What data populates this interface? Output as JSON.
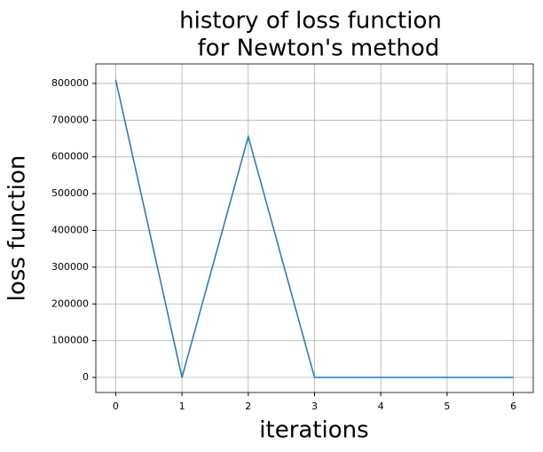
{
  "chart_data": {
    "type": "line",
    "title": [
      "history of loss function",
      "for Newton's method"
    ],
    "xlabel": "iterations",
    "ylabel": "loss function",
    "x": [
      0,
      1,
      2,
      3,
      4,
      5,
      6
    ],
    "series": [
      {
        "color": "#1f77b4",
        "values": [
          810000,
          0,
          655000,
          0,
          0,
          0,
          0
        ]
      }
    ],
    "xlim": [
      -0.3,
      6.3
    ],
    "xticks": [
      0,
      1,
      2,
      3,
      4,
      5,
      6
    ],
    "ylim": [
      -41000,
      853000
    ],
    "yticks": [
      0,
      100000,
      200000,
      300000,
      400000,
      500000,
      600000,
      700000,
      800000
    ],
    "grid": true
  }
}
